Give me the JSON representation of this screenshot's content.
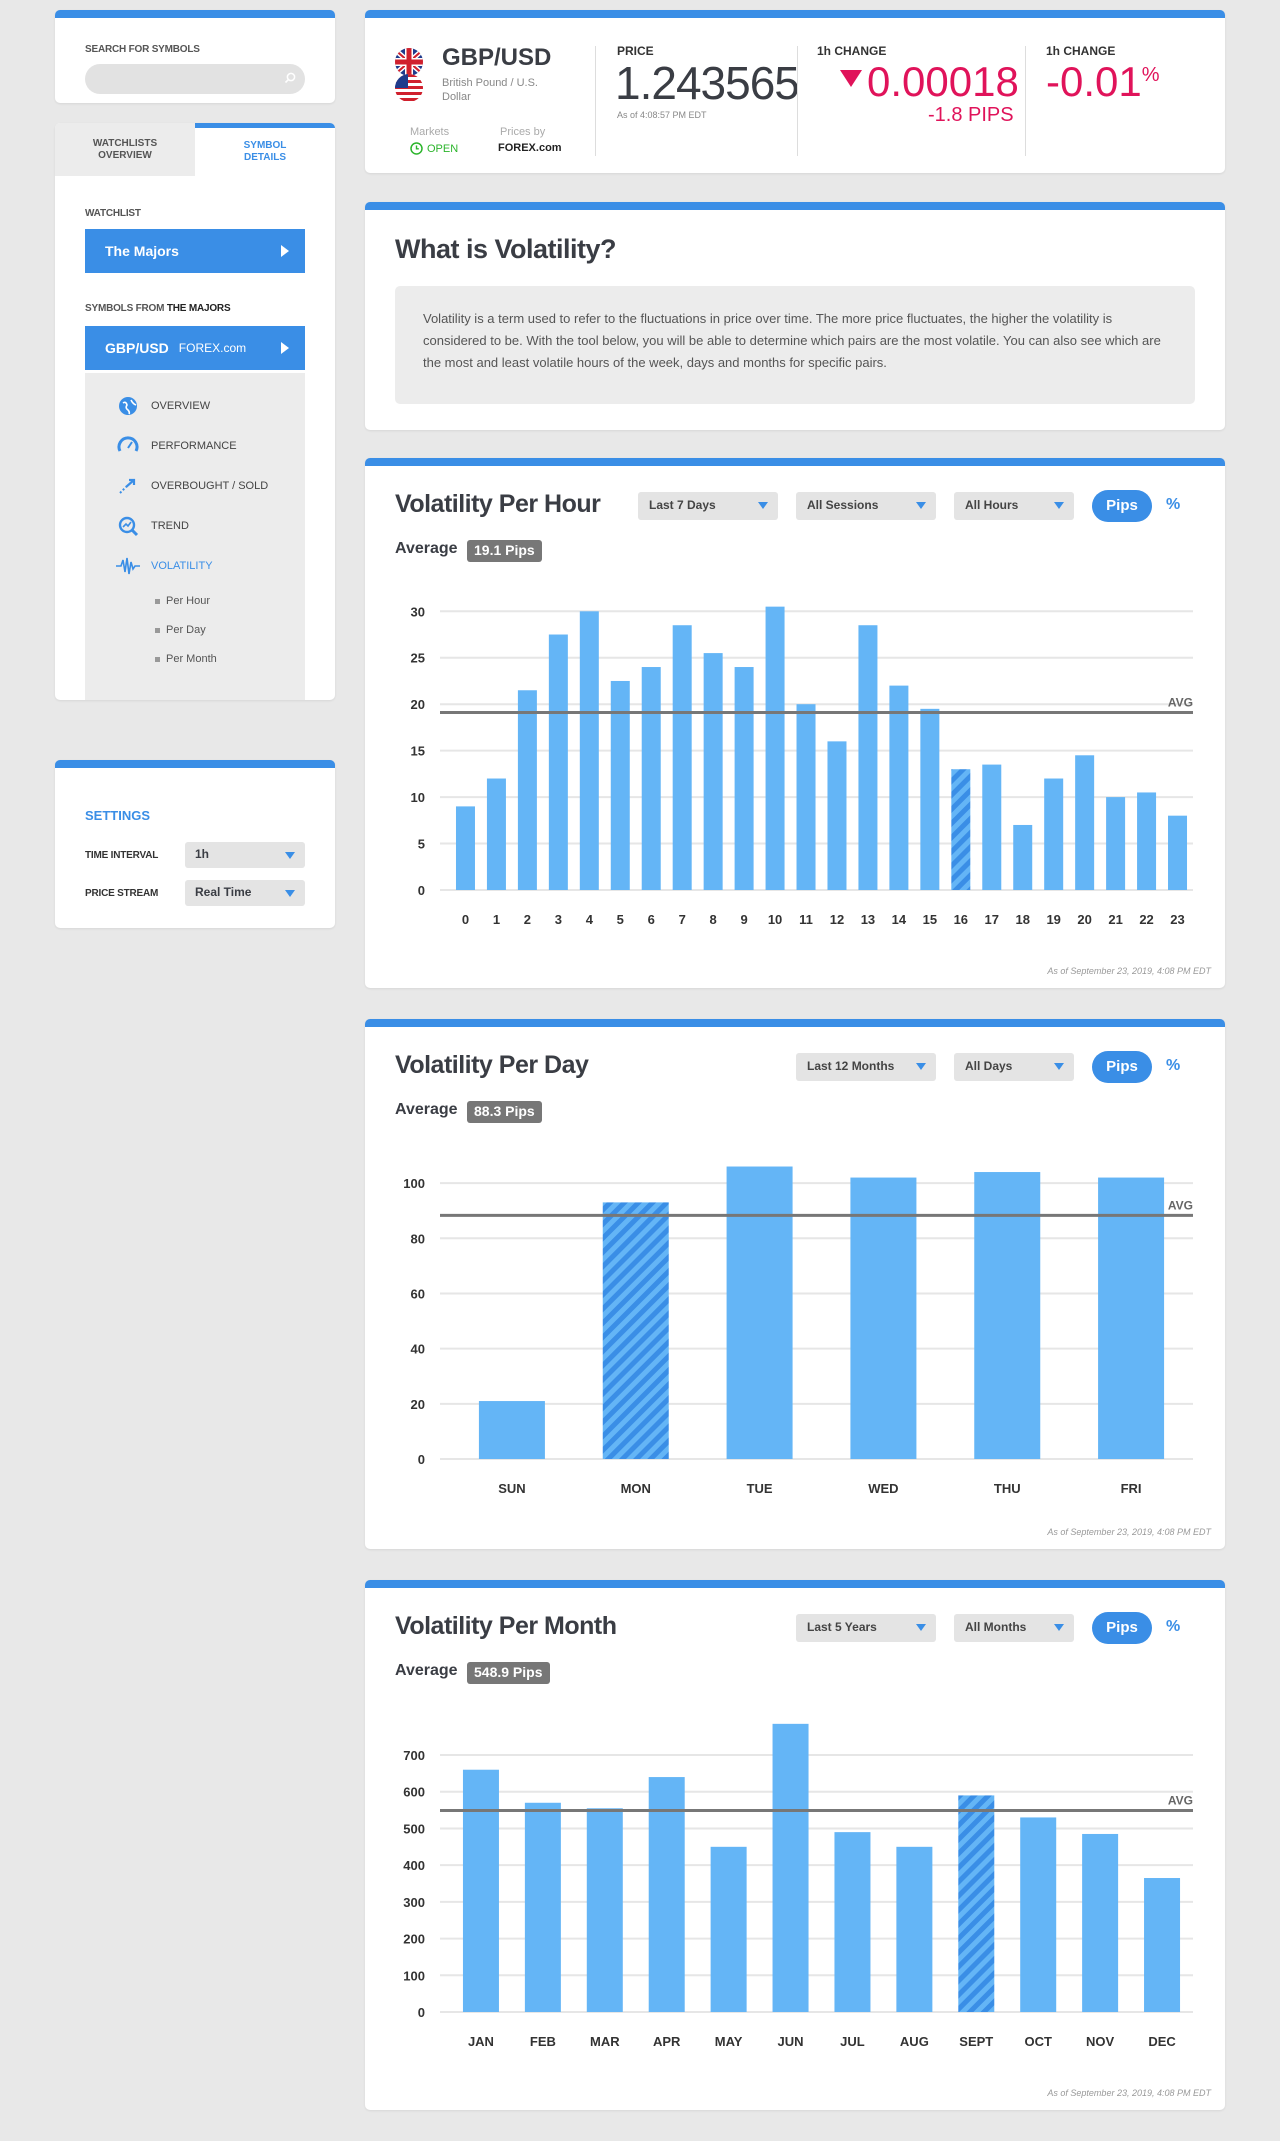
{
  "sidebar": {
    "search_label": "SEARCH FOR SYMBOLS",
    "tabs": [
      "WATCHLISTS OVERVIEW",
      "SYMBOL DETAILS"
    ],
    "watchlist_label": "WATCHLIST",
    "watchlist_value": "The Majors",
    "symbols_label": "SYMBOLS FROM",
    "symbols_label_bold": "THE MAJORS",
    "pair": "GBP/USD",
    "pair_source": "FOREX.com",
    "menu": [
      "OVERVIEW",
      "PERFORMANCE",
      "OVERBOUGHT / SOLD",
      "TREND",
      "VOLATILITY"
    ],
    "submenu": [
      "Per Hour",
      "Per Day",
      "Per Month"
    ]
  },
  "settings": {
    "title": "SETTINGS",
    "time_interval_label": "TIME INTERVAL",
    "time_interval_value": "1h",
    "price_stream_label": "PRICE STREAM",
    "price_stream_value": "Real Time"
  },
  "quote": {
    "pair": "GBP/USD",
    "description": "British Pound / U.S. Dollar",
    "markets_label": "Markets",
    "markets_status": "OPEN",
    "prices_by_label": "Prices by",
    "prices_by": "FOREX.com",
    "price_label": "PRICE",
    "price": "1.243565",
    "price_asof": "As of 4:08:57 PM EDT",
    "change_label": "1h CHANGE",
    "change": "0.00018",
    "change_pips": "-1.8 PIPS",
    "pct_label": "1h CHANGE",
    "pct": "-0.01",
    "pct_sign": "%"
  },
  "what": {
    "title": "What is Volatility?",
    "text": "Volatility is a term used to refer to the fluctuations in price over time. The more price fluctuates, the higher the volatility is considered to be. With the tool below, you will be able to determine which pairs are the most volatile. You can also see which are the most and least volatile hours of the week, days and months for specific pairs."
  },
  "colors": {
    "accent": "#3a8ee6",
    "bar": "#64b5f6",
    "negative": "#e0135a",
    "avg_line": "#777777"
  },
  "charts": {
    "hour": {
      "title": "Volatility Per Hour",
      "filters": [
        "Last 7 Days",
        "All Sessions",
        "All Hours"
      ],
      "pips": "Pips",
      "pct": "%",
      "average_label": "Average",
      "average_badge": "19.1 Pips",
      "asof": "As of September 23, 2019, 4:08 PM EDT"
    },
    "day": {
      "title": "Volatility Per Day",
      "filters": [
        "Last 12 Months",
        "All Days"
      ],
      "pips": "Pips",
      "pct": "%",
      "average_label": "Average",
      "average_badge": "88.3 Pips",
      "asof": "As of September 23, 2019, 4:08 PM EDT"
    },
    "month": {
      "title": "Volatility Per Month",
      "filters": [
        "Last 5 Years",
        "All Months"
      ],
      "pips": "Pips",
      "pct": "%",
      "average_label": "Average",
      "average_badge": "548.9 Pips",
      "asof": "As of September 23, 2019, 4:08 PM EDT"
    }
  },
  "chart_data": [
    {
      "type": "bar",
      "title": "Volatility Per Hour",
      "categories": [
        "0",
        "1",
        "2",
        "3",
        "4",
        "5",
        "6",
        "7",
        "8",
        "9",
        "10",
        "11",
        "12",
        "13",
        "14",
        "15",
        "16",
        "17",
        "18",
        "19",
        "20",
        "21",
        "22",
        "23"
      ],
      "values": [
        9,
        12,
        21.5,
        27.5,
        30,
        22.5,
        24,
        28.5,
        25.5,
        24,
        30.5,
        20,
        16,
        28.5,
        22,
        19.5,
        13,
        13.5,
        7,
        12,
        14.5,
        10,
        10.5,
        8
      ],
      "highlight_index": 16,
      "average": 19.1,
      "avg_label": "AVG",
      "yticks": [
        0,
        5,
        10,
        15,
        20,
        25,
        30
      ],
      "ylim": [
        0,
        31
      ]
    },
    {
      "type": "bar",
      "title": "Volatility Per Day",
      "categories": [
        "SUN",
        "MON",
        "TUE",
        "WED",
        "THU",
        "FRI"
      ],
      "values": [
        21,
        93,
        106,
        102,
        104,
        102
      ],
      "highlight_index": 1,
      "average": 88.3,
      "avg_label": "AVG",
      "yticks": [
        0,
        20,
        40,
        60,
        80,
        100
      ],
      "ylim": [
        0,
        108
      ]
    },
    {
      "type": "bar",
      "title": "Volatility Per Month",
      "categories": [
        "JAN",
        "FEB",
        "MAR",
        "APR",
        "MAY",
        "JUN",
        "JUL",
        "AUG",
        "SEPT",
        "OCT",
        "NOV",
        "DEC"
      ],
      "values": [
        660,
        570,
        555,
        640,
        450,
        785,
        490,
        450,
        590,
        530,
        485,
        365
      ],
      "highlight_index": 8,
      "average": 548.9,
      "avg_label": "AVG",
      "yticks": [
        0,
        100,
        200,
        300,
        400,
        500,
        600,
        700
      ],
      "ylim": [
        0,
        790
      ]
    }
  ]
}
